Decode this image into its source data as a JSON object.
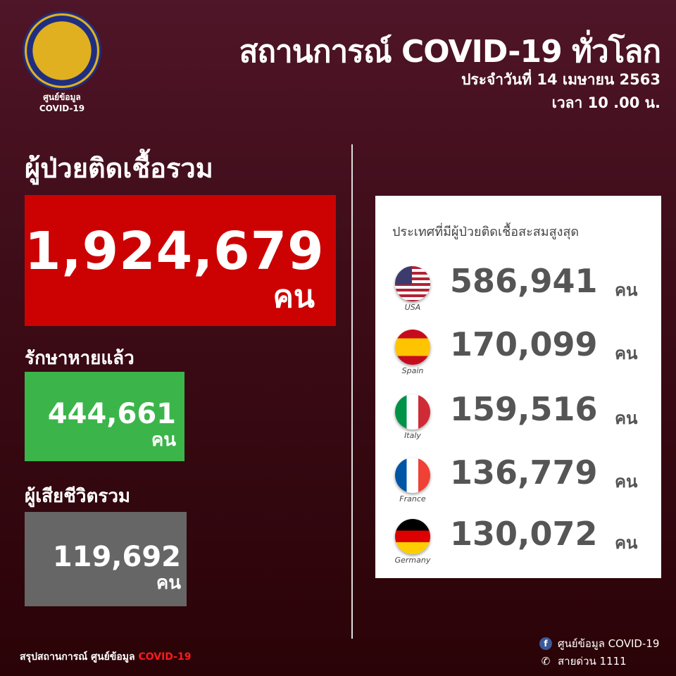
{
  "logo": {
    "line1": "ศูนย์ข้อมูล",
    "line2": "COVID-19"
  },
  "header": {
    "title": "สถานการณ์ COVID-19 ทั่วโลก",
    "date": "ประจำวันที่ 14 เมษายน 2563",
    "time": "เวลา 10 .00 น."
  },
  "total": {
    "label": "ผู้ป่วยติดเชื้อรวม",
    "value": "1,924,679",
    "unit": "คน",
    "color": "#cc0202"
  },
  "recovered": {
    "label": "รักษาหายแล้ว",
    "value": "444,661",
    "unit": "คน",
    "color": "#3bb54a"
  },
  "deaths": {
    "label": "ผู้เสียชีวิตรวม",
    "value": "119,692",
    "unit": "คน",
    "color": "#666666"
  },
  "top_countries": {
    "title": "ประเทศที่มีผู้ป่วยติดเชื้อสะสมสูงสุด",
    "items": [
      {
        "name": "USA",
        "value": "586,941",
        "unit": "คน",
        "flag": "us-flag"
      },
      {
        "name": "Spain",
        "value": "170,099",
        "unit": "คน",
        "flag": "spain-flag"
      },
      {
        "name": "Italy",
        "value": "159,516",
        "unit": "คน",
        "flag": "italy-flag"
      },
      {
        "name": "France",
        "value": "136,779",
        "unit": "คน",
        "flag": "france-flag"
      },
      {
        "name": "Germany",
        "value": "130,072",
        "unit": "คน",
        "flag": "germany-flag"
      }
    ]
  },
  "footer": {
    "summary": "สรุปสถานการณ์ ศูนย์ข้อมูล",
    "summary_highlight": "COVID-19",
    "facebook": "ศูนย์ข้อมูล COVID-19",
    "hotline": "สายด่วน 1111"
  }
}
